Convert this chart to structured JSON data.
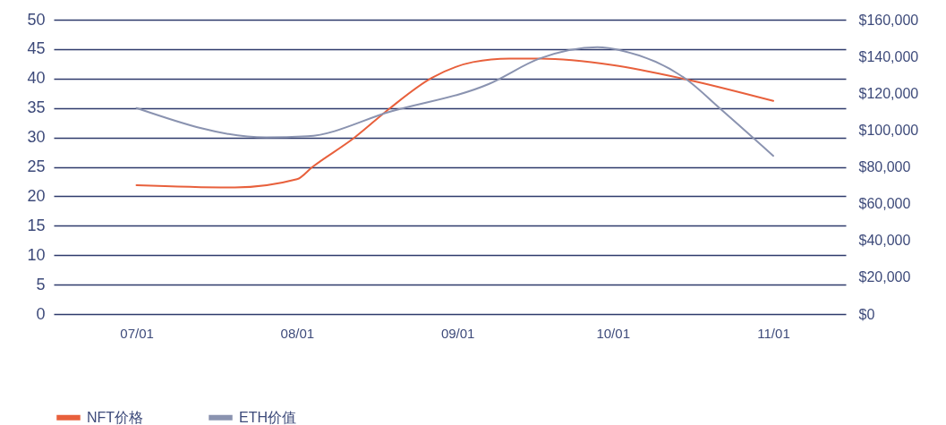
{
  "chart_data": {
    "type": "line",
    "xlim": [
      "--06-15",
      "--11-15"
    ],
    "xticks": [
      {
        "value": "--07-01",
        "label": "07/01"
      },
      {
        "value": "--08-01",
        "label": "08/01"
      },
      {
        "value": "--09-01",
        "label": "09/01"
      },
      {
        "value": "--10-01",
        "label": "10/01"
      },
      {
        "value": "--11-01",
        "label": "11/01"
      }
    ],
    "ylim": [
      0,
      50
    ],
    "yticks": [
      0,
      5,
      10,
      15,
      20,
      25,
      30,
      35,
      40,
      45,
      50
    ],
    "y2lim": [
      0,
      160000
    ],
    "y2ticks": [
      {
        "value": 0,
        "label": "$0"
      },
      {
        "value": 20000,
        "label": "$20,000"
      },
      {
        "value": 40000,
        "label": "$40,000"
      },
      {
        "value": 60000,
        "label": "$60,000"
      },
      {
        "value": 80000,
        "label": "$80,000"
      },
      {
        "value": 100000,
        "label": "$100,000"
      },
      {
        "value": 120000,
        "label": "$120,000"
      },
      {
        "value": 140000,
        "label": "$140,000"
      },
      {
        "value": 160000,
        "label": "$160,000"
      }
    ],
    "grid": "y",
    "legend": "bottom",
    "line_style": "solid",
    "marker": "none",
    "series": [
      {
        "name": "NFT价格",
        "color": "#e8603c",
        "x": [
          "--07-01",
          "--07-20",
          "--08-01",
          "--08-04",
          "--08-12",
          "--08-19",
          "--08-27",
          "--09-04",
          "--09-11",
          "--09-17",
          "--10-01",
          "--10-15",
          "--11-01"
        ],
        "values": [
          21.9,
          21.5,
          22.9,
          25,
          29.9,
          35,
          40.1,
          42.8,
          43.4,
          43.4,
          42.3,
          39.9,
          36.2
        ]
      },
      {
        "name": "ETH价值",
        "color": "#8a93b0",
        "axis": "y2",
        "x": [
          "--07-01",
          "--07-26",
          "--08-03",
          "--08-19",
          "--09-07",
          "--09-17",
          "--09-28",
          "--10-03",
          "--10-15",
          "--10-22",
          "--11-01"
        ],
        "values": [
          112000,
          96000,
          96600,
          110000,
          125000,
          139000,
          145000,
          143000,
          128000,
          111000,
          86000
        ]
      }
    ]
  }
}
